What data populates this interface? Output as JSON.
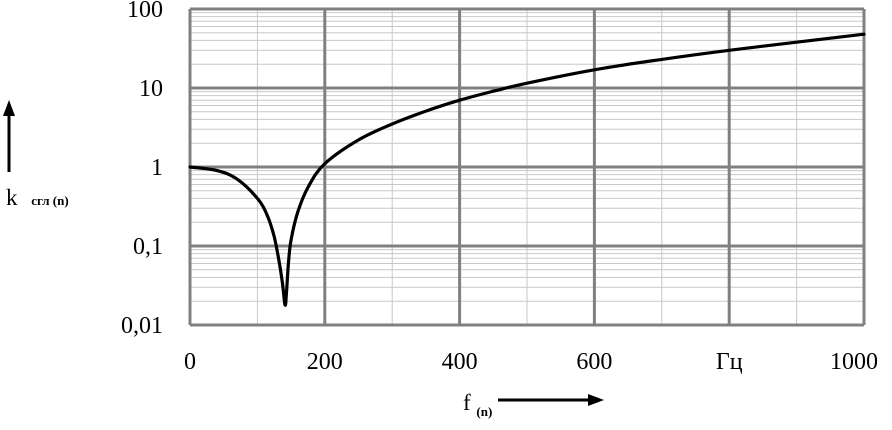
{
  "chart_data": {
    "type": "line",
    "x_scale": "linear",
    "y_scale": "log",
    "xlim": [
      0,
      1000
    ],
    "ylim": [
      0.01,
      100
    ],
    "x_ticks": [
      "0",
      "200",
      "400",
      "600",
      "Гц",
      "1000"
    ],
    "y_ticks": [
      "100",
      "10",
      "1",
      "0,1",
      "0,01"
    ],
    "ylabel": {
      "main": "k",
      "sub": "сгл (n)"
    },
    "xlabel": {
      "main": "f",
      "sub": "(n)"
    },
    "grid": true,
    "series": [
      {
        "x": [
          0,
          40,
          70,
          100,
          115,
          125,
          132,
          137,
          141,
          143,
          146,
          150,
          160,
          175,
          200,
          250,
          300,
          350,
          400,
          450,
          500,
          600,
          700,
          800,
          900,
          1000
        ],
        "y": [
          1.0,
          0.9,
          0.7,
          0.4,
          0.24,
          0.13,
          0.065,
          0.035,
          0.018,
          0.025,
          0.06,
          0.12,
          0.27,
          0.55,
          1.1,
          2.2,
          3.5,
          5.1,
          7.0,
          9.1,
          11.5,
          17,
          23,
          30,
          38,
          48
        ],
        "color": "#000000"
      }
    ]
  }
}
